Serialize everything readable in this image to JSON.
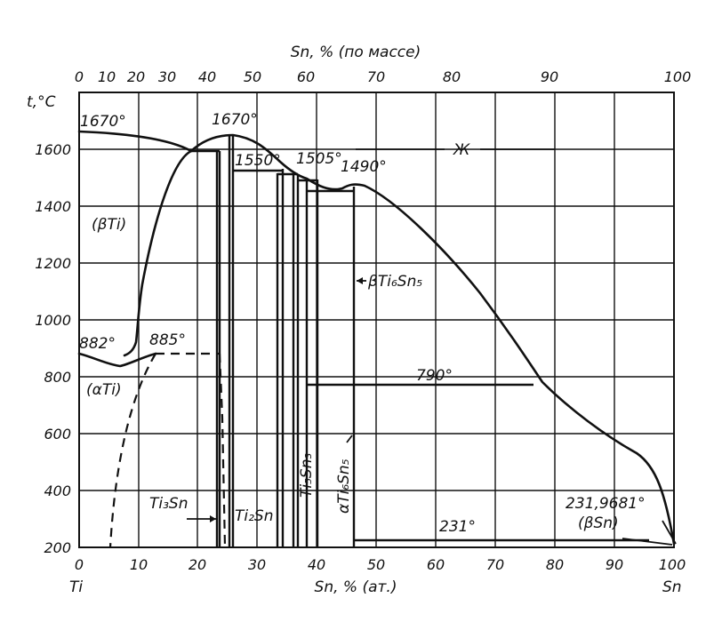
{
  "chart_data": {
    "type": "phase-diagram",
    "axes": {
      "top_title": "Sn, % (по массе)",
      "bottom_title": "Sn, % (ат.)",
      "y_title": "t,°C",
      "left_element": "Ti",
      "right_element": "Sn",
      "top_ticks": [
        "0",
        "10",
        "20",
        "30",
        "40",
        "50",
        "60",
        "70",
        "80",
        "90",
        "100"
      ],
      "bottom_ticks": [
        "0",
        "10",
        "20",
        "30",
        "40",
        "50",
        "60",
        "70",
        "80",
        "90",
        "100"
      ],
      "y_ticks": [
        "200",
        "400",
        "600",
        "800",
        "1000",
        "1200",
        "1400",
        "1600"
      ],
      "xlim": [
        0,
        100
      ],
      "ylim": [
        200,
        1750
      ]
    },
    "labels": {
      "t1670_left": "1670°",
      "t1670_mid": "1670°",
      "t1550": "1550°",
      "t1505": "1505°",
      "t1490": "1490°",
      "liquid": "Ж",
      "beta_ti": "(βTi)",
      "t882": "882°",
      "t885": "885°",
      "alpha_ti": "(αTi)",
      "t790": "790°",
      "beta_ti6sn5": "βTi₆Sn₅",
      "alpha_ti6sn5": "αTi₆Sn₅",
      "ti5sn3": "Ti₅Sn₃",
      "ti3sn": "Ti₃Sn",
      "ti2sn": "Ti₂Sn",
      "t231": "231°",
      "t231_9681": "231,9681°",
      "beta_sn": "(βSn)"
    }
  }
}
